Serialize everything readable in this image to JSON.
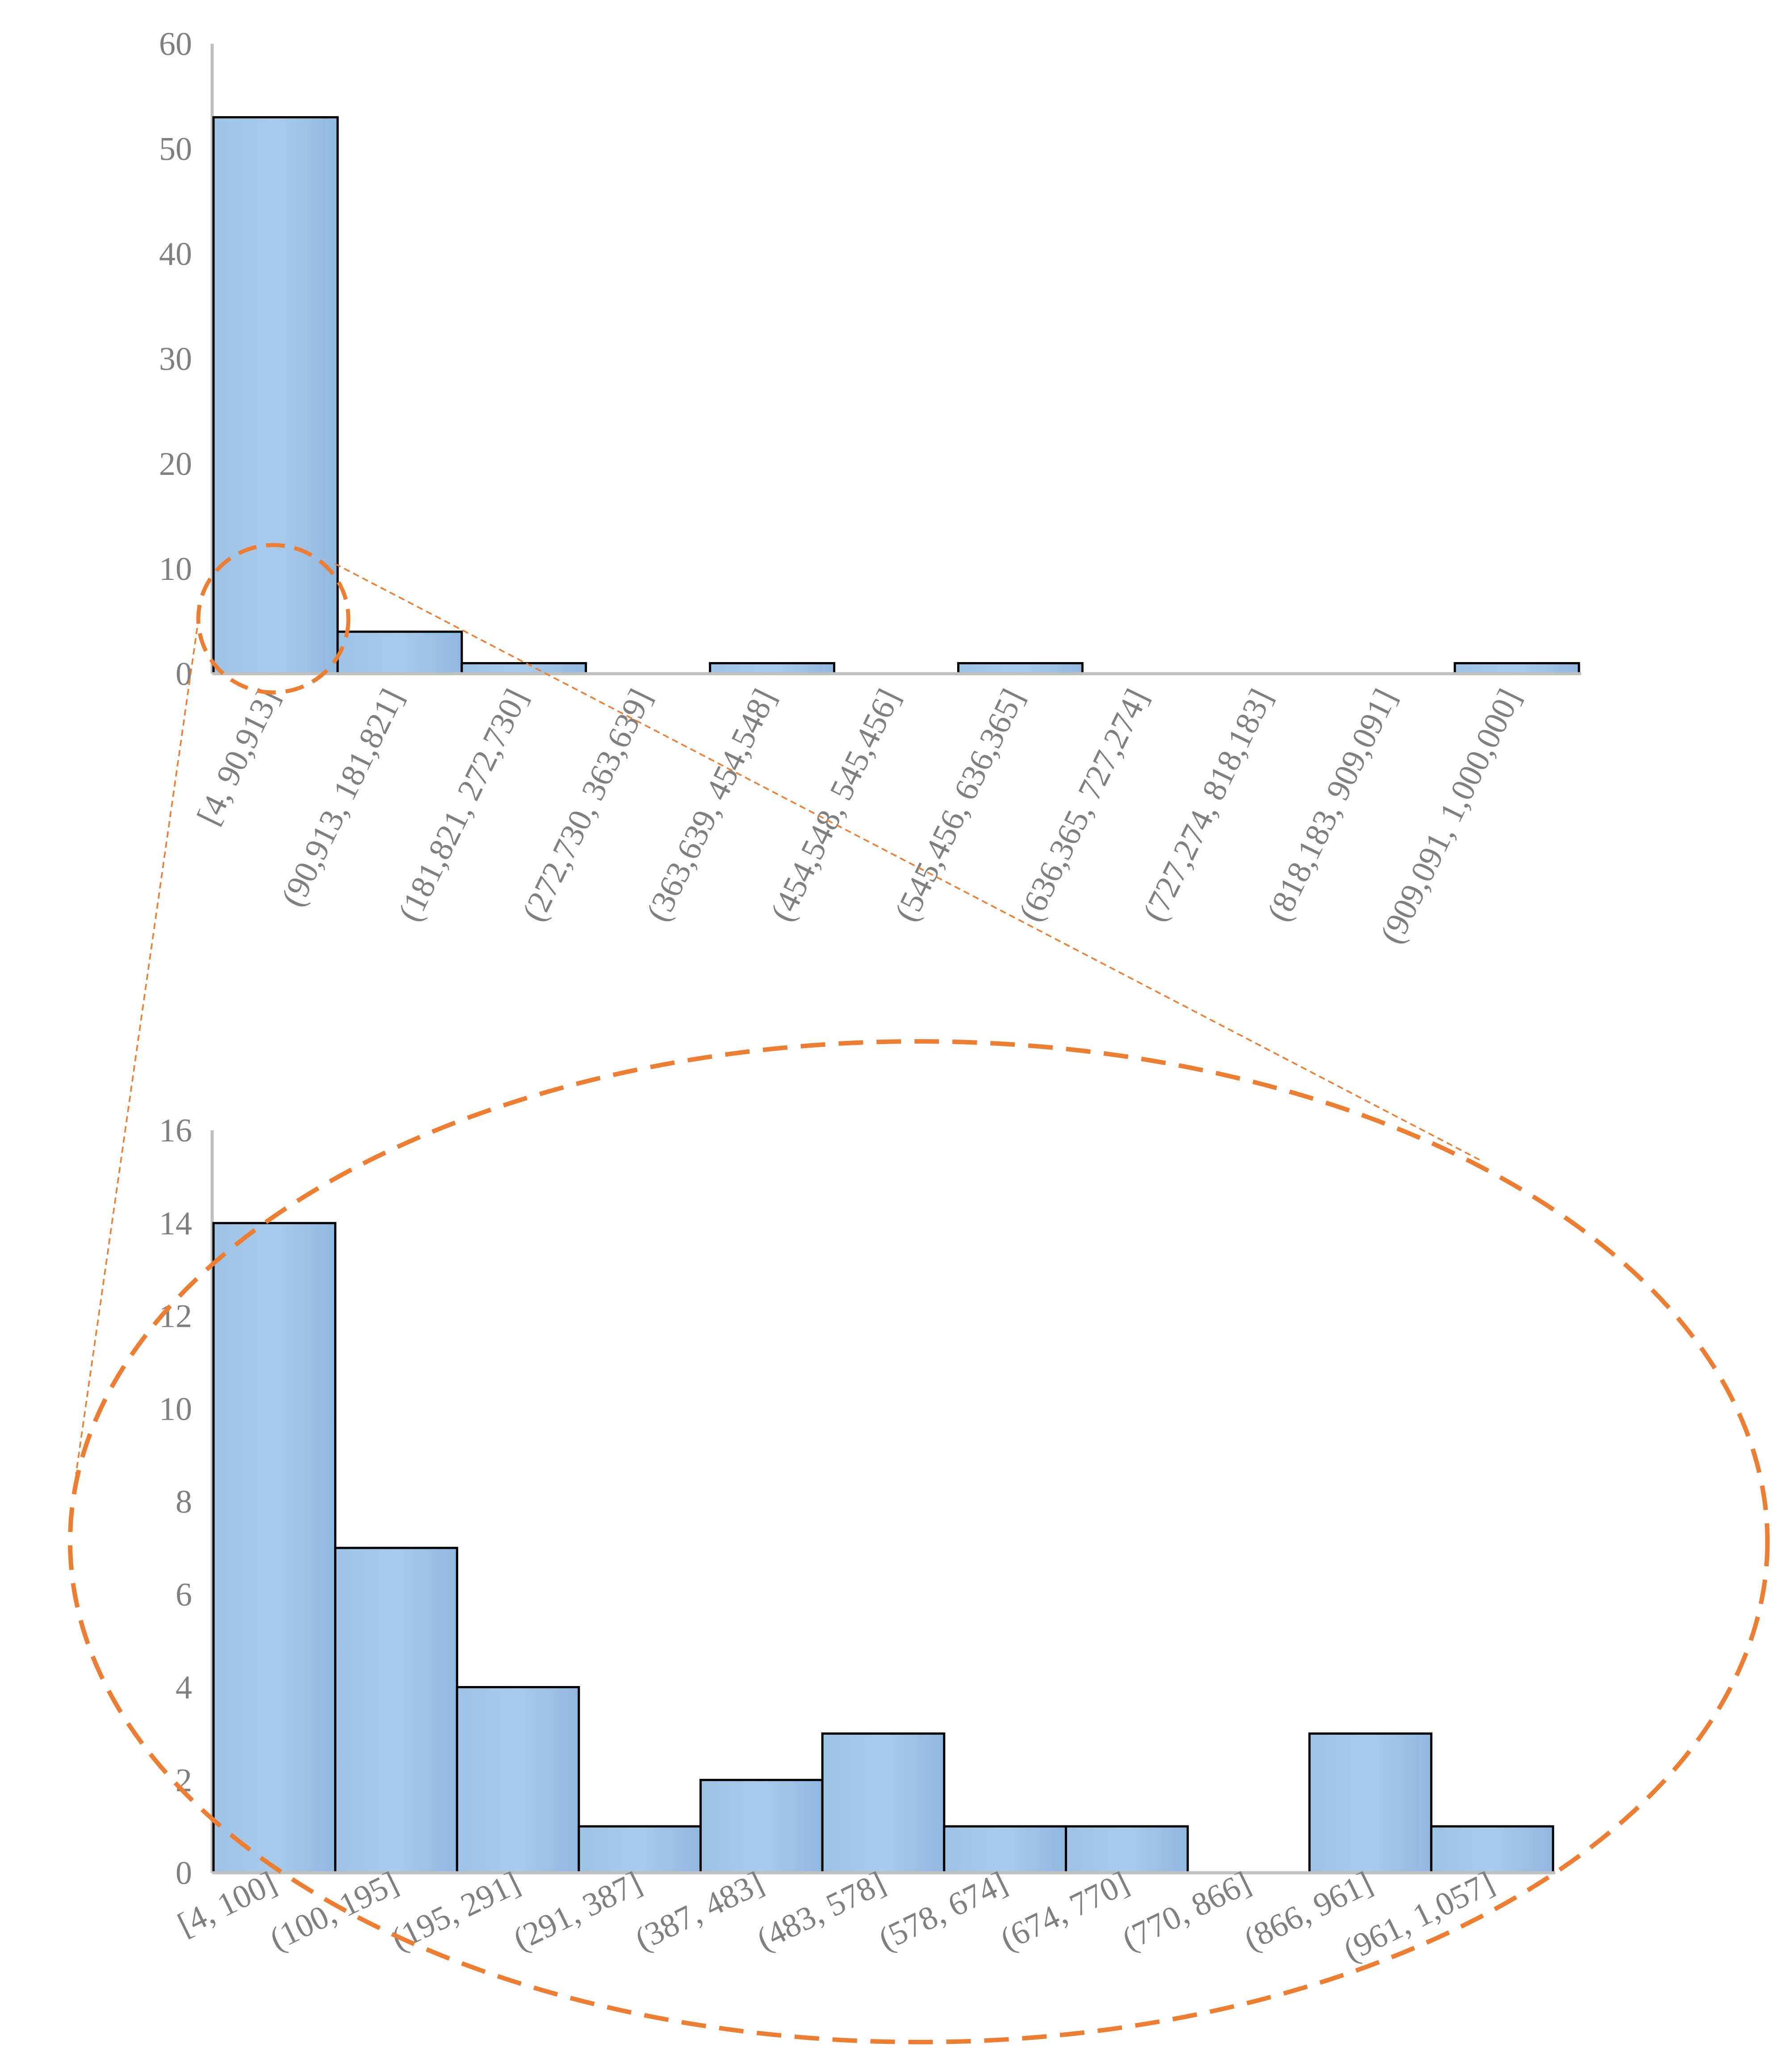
{
  "chart_data": [
    {
      "type": "bar",
      "categories": [
        "[4, 90,913]",
        "(90,913, 181,821]",
        "(181,821, 272,730]",
        "(272,730, 363,639]",
        "(363,639, 454,548]",
        "(454,548, 545,456]",
        "(545,456, 636,365]",
        "(636,365, 727,274]",
        "(727,274, 818,183]",
        "(818,183, 909,091]",
        "(909,091, 1,000,000]"
      ],
      "values": [
        53,
        4,
        1,
        0,
        1,
        0,
        1,
        0,
        0,
        0,
        1
      ],
      "ylim": [
        0,
        60
      ],
      "yticks": [
        "0",
        "10",
        "20",
        "30",
        "40",
        "50",
        "60"
      ],
      "grid": false,
      "legend": "none",
      "bar_color": "#9dc3e6"
    },
    {
      "type": "bar",
      "categories": [
        "[4, 100]",
        "(100, 195]",
        "(195, 291]",
        "(291, 387]",
        "(387, 483]",
        "(483, 578]",
        "(578, 674]",
        "(674, 770]",
        "(770, 866]",
        "(866, 961]",
        "(961, 1,057]"
      ],
      "values": [
        14,
        7,
        4,
        1,
        2,
        3,
        1,
        1,
        0,
        3,
        1
      ],
      "ylim": [
        0,
        16
      ],
      "yticks": [
        "0",
        "2",
        "4",
        "6",
        "8",
        "10",
        "12",
        "14",
        "16"
      ],
      "grid": false,
      "legend": "none",
      "bar_color": "#9dc3e6"
    }
  ],
  "annotation": {
    "type": "zoom-callout",
    "description_color": "#ed7d31"
  }
}
